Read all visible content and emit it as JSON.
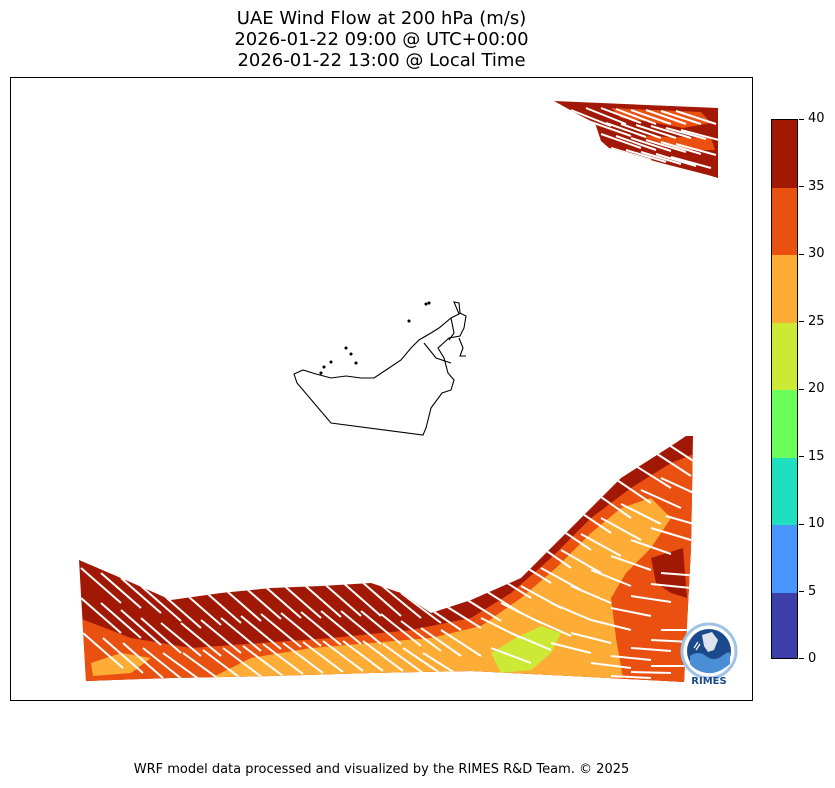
{
  "title": {
    "line1": "UAE Wind Flow at 200 hPa (m/s)",
    "line2": "2026-01-22 09:00 @ UTC+00:00",
    "line3": "2026-01-22 13:00 @ Local Time"
  },
  "colorbar": {
    "levels": [
      {
        "from": 0,
        "to": 5,
        "color": "#3d3fa8"
      },
      {
        "from": 5,
        "to": 10,
        "color": "#4a96ff"
      },
      {
        "from": 10,
        "to": 15,
        "color": "#1edfc0"
      },
      {
        "from": 15,
        "to": 20,
        "color": "#6bff5a"
      },
      {
        "from": 20,
        "to": 25,
        "color": "#cbe935"
      },
      {
        "from": 25,
        "to": 30,
        "color": "#fdad35"
      },
      {
        "from": 30,
        "to": 35,
        "color": "#ea5010"
      },
      {
        "from": 35,
        "to": 40,
        "color": "#a11805"
      }
    ],
    "tick_labels": [
      "0",
      "5",
      "10",
      "15",
      "20",
      "25",
      "30",
      "35",
      "40"
    ]
  },
  "map": {
    "wind_direction": "northwest-to-southeast flow, westerly in the east",
    "vector_color": "#ffffff"
  },
  "logo": {
    "text": "RIMES"
  },
  "footer": "WRF model data processed and visualized by the RIMES R&D Team. © 2025"
}
